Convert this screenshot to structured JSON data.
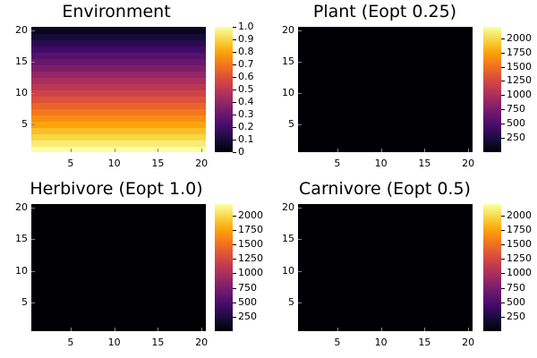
{
  "chart_data": [
    {
      "type": "heatmap",
      "title": "Environment",
      "x": {
        "ticks": [
          "5",
          "10",
          "15",
          "20"
        ],
        "range": [
          0.5,
          20.5
        ]
      },
      "y": {
        "ticks": [
          "5",
          "10",
          "15",
          "20"
        ],
        "range": [
          0.5,
          20.5
        ]
      },
      "values_by_row_bottom_to_top": [
        1.0,
        0.95,
        0.9,
        0.85,
        0.8,
        0.75,
        0.7,
        0.65,
        0.6,
        0.55,
        0.5,
        0.45,
        0.4,
        0.35,
        0.3,
        0.25,
        0.2,
        0.15,
        0.1,
        0.05
      ],
      "colorbar": {
        "min": 0,
        "max": 1.0,
        "ticks": [
          "0",
          "0.1",
          "0.2",
          "0.3",
          "0.4",
          "0.5",
          "0.6",
          "0.7",
          "0.8",
          "0.9",
          "1.0"
        ]
      },
      "colormap": "inferno"
    },
    {
      "type": "heatmap",
      "title": "Plant (Eopt 0.25)",
      "x": {
        "ticks": [
          "5",
          "10",
          "15",
          "20"
        ],
        "range": [
          0.5,
          20.5
        ]
      },
      "y": {
        "ticks": [
          "5",
          "10",
          "15",
          "20"
        ],
        "range": [
          0.5,
          20.5
        ]
      },
      "values_by_row_bottom_to_top": [
        0,
        0,
        0,
        0,
        0,
        0,
        0,
        0,
        0,
        0,
        0,
        0,
        0,
        0,
        0,
        0,
        0,
        0,
        0,
        0
      ],
      "colorbar": {
        "min": 0,
        "max": 2200,
        "ticks": [
          "250",
          "500",
          "750",
          "1000",
          "1250",
          "1500",
          "1750",
          "2000"
        ]
      },
      "colormap": "inferno"
    },
    {
      "type": "heatmap",
      "title": "Herbivore (Eopt 1.0)",
      "x": {
        "ticks": [
          "5",
          "10",
          "15",
          "20"
        ],
        "range": [
          0.5,
          20.5
        ]
      },
      "y": {
        "ticks": [
          "5",
          "10",
          "15",
          "20"
        ],
        "range": [
          0.5,
          20.5
        ]
      },
      "values_by_row_bottom_to_top": [
        0,
        0,
        0,
        0,
        0,
        0,
        0,
        0,
        0,
        0,
        0,
        0,
        0,
        0,
        0,
        0,
        0,
        0,
        0,
        0
      ],
      "colorbar": {
        "min": 0,
        "max": 2200,
        "ticks": [
          "250",
          "500",
          "750",
          "1000",
          "1250",
          "1500",
          "1750",
          "2000"
        ]
      },
      "colormap": "inferno"
    },
    {
      "type": "heatmap",
      "title": "Carnivore (Eopt 0.5)",
      "x": {
        "ticks": [
          "5",
          "10",
          "15",
          "20"
        ],
        "range": [
          0.5,
          20.5
        ]
      },
      "y": {
        "ticks": [
          "5",
          "10",
          "15",
          "20"
        ],
        "range": [
          0.5,
          20.5
        ]
      },
      "values_by_row_bottom_to_top": [
        0,
        0,
        0,
        0,
        0,
        0,
        0,
        0,
        0,
        0,
        0,
        0,
        0,
        0,
        0,
        0,
        0,
        0,
        0,
        0
      ],
      "colorbar": {
        "min": 0,
        "max": 2200,
        "ticks": [
          "250",
          "500",
          "750",
          "1000",
          "1250",
          "1500",
          "1750",
          "2000"
        ]
      },
      "colormap": "inferno"
    }
  ]
}
